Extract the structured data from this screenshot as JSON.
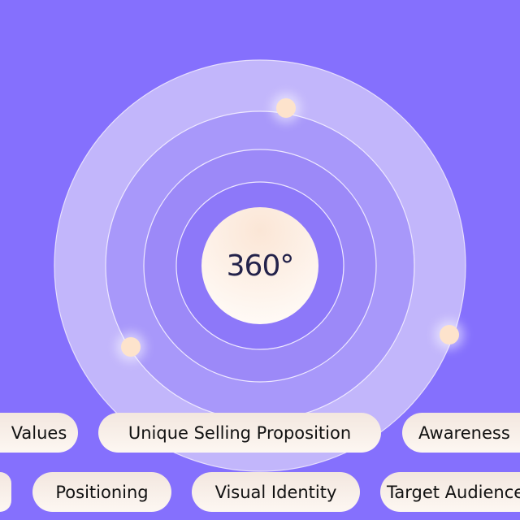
{
  "center": {
    "label": "360°"
  },
  "colors": {
    "background": "#8570fd",
    "orbit_outer": "#c2b6fb",
    "orbit_mid": "#a898fa",
    "orbit_inner": "#9c89f8",
    "core": "#fdf3ea",
    "dot": "#fde3cc",
    "pill": "#f8efe8"
  },
  "tags": {
    "row1": [
      "Values",
      "Unique Selling Proposition",
      "Awareness"
    ],
    "row2": [
      "",
      "Positioning",
      "Visual Identity",
      "Target Audience"
    ]
  }
}
